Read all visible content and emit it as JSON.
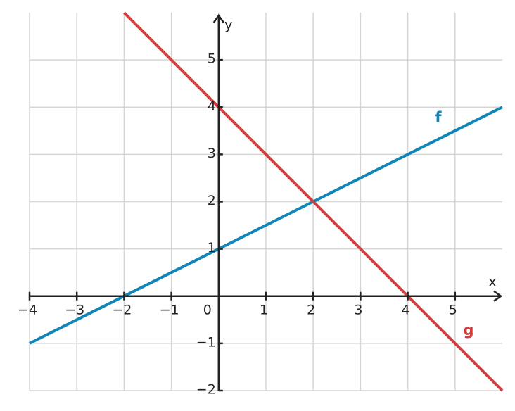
{
  "chart_data": {
    "type": "line",
    "x_label": "x",
    "y_label": "y",
    "xlim": [
      -4,
      6
    ],
    "ylim": [
      -2,
      6
    ],
    "xticks": [
      {
        "value": -4,
        "label": "−4"
      },
      {
        "value": -3,
        "label": "−3"
      },
      {
        "value": -2,
        "label": "−2"
      },
      {
        "value": -1,
        "label": "−1"
      },
      0,
      1,
      2,
      3,
      4,
      5
    ],
    "yticks": [
      {
        "value": -2,
        "label": "−2"
      },
      {
        "value": -1,
        "label": "−1"
      },
      1,
      2,
      3,
      4,
      5
    ],
    "grid": true,
    "series": [
      {
        "name": "f",
        "color": "#0f86b6",
        "x": [
          -4,
          6
        ],
        "values": [
          -1,
          4
        ]
      },
      {
        "name": "g",
        "color": "#d43d3b",
        "x": [
          -2,
          6
        ],
        "values": [
          6,
          -2
        ]
      }
    ]
  }
}
